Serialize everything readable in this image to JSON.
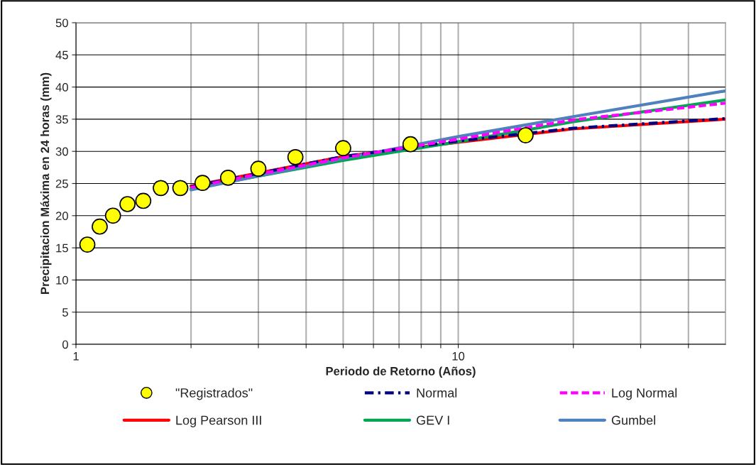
{
  "chart_data": {
    "type": "line",
    "xlabel": "Periodo de Retorno (Años)",
    "ylabel": "Precipitacion Máxima en 24 horas (mm)",
    "log": "x",
    "xlim": [
      1,
      50
    ],
    "ylim": [
      0,
      50
    ],
    "xticks": [
      1,
      {
        "value": 2,
        "label": null
      },
      {
        "value": 3,
        "label": null
      },
      {
        "value": 4,
        "label": null
      },
      {
        "value": 5,
        "label": null
      },
      {
        "value": 6,
        "label": null
      },
      {
        "value": 7,
        "label": null
      },
      {
        "value": 8,
        "label": null
      },
      {
        "value": 9,
        "label": null
      },
      10,
      {
        "value": 20,
        "label": null
      },
      {
        "value": 30,
        "label": null
      },
      {
        "value": 40,
        "label": null
      }
    ],
    "yticks": [
      0,
      5,
      10,
      15,
      20,
      25,
      30,
      35,
      40,
      45,
      50
    ],
    "grid": true,
    "legend": "bottom",
    "series": [
      {
        "name": "\"Registrados\"",
        "type": "scatter",
        "marker": "circle",
        "color": "#ffff00",
        "x": [
          1.071,
          1.154,
          1.25,
          1.364,
          1.5,
          1.667,
          1.875,
          2.143,
          2.5,
          3.0,
          3.75,
          5.0,
          7.5,
          15.0
        ],
        "values": [
          15.5,
          18.3,
          20.0,
          21.8,
          22.3,
          24.3,
          24.3,
          25.1,
          25.9,
          27.3,
          29.1,
          30.5,
          31.1,
          32.5
        ]
      },
      {
        "name": "Normal",
        "line_style": "dashdot",
        "color": "#000080",
        "x": [
          2,
          5,
          10,
          20,
          50
        ],
        "values": [
          24.5,
          29.2,
          31.6,
          33.6,
          35.1
        ]
      },
      {
        "name": "Log Normal",
        "line_style": "dashed",
        "color": "#ff00ff",
        "x": [
          2,
          5,
          10,
          20,
          50
        ],
        "values": [
          24.4,
          29.0,
          31.9,
          34.9,
          37.5
        ]
      },
      {
        "name": "Log Pearson III",
        "line_style": "solid",
        "color": "#ff0000",
        "x": [
          2,
          5,
          10,
          20,
          50
        ],
        "values": [
          24.6,
          29.2,
          31.4,
          33.5,
          35.0
        ]
      },
      {
        "name": "GEV I",
        "line_style": "solid",
        "color": "#00a651",
        "x": [
          2,
          5,
          10,
          20,
          50
        ],
        "values": [
          24.2,
          28.6,
          31.5,
          34.6,
          38.0
        ]
      },
      {
        "name": "Gumbel",
        "line_style": "solid",
        "color": "#4f81bd",
        "x": [
          2,
          5,
          10,
          20,
          50
        ],
        "values": [
          24.0,
          28.9,
          32.3,
          35.4,
          39.4
        ]
      }
    ]
  }
}
